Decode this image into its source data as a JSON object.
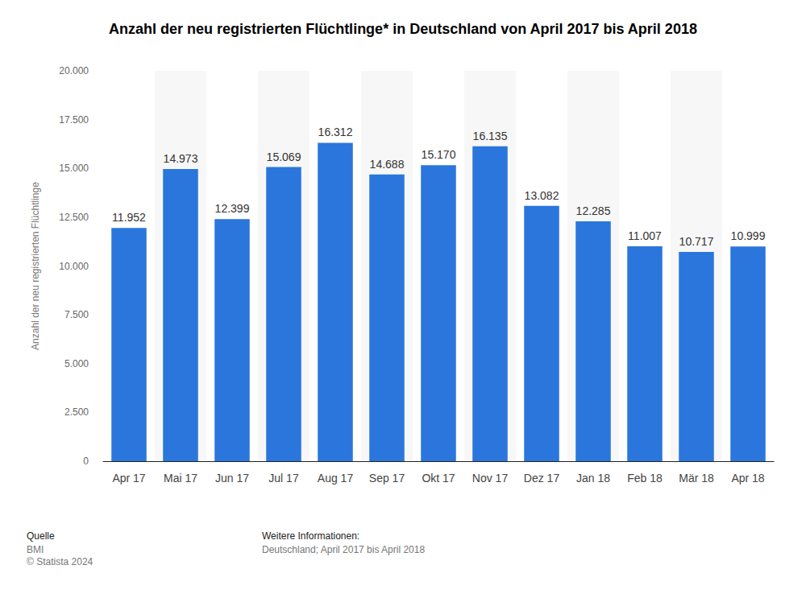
{
  "chart_data": {
    "type": "bar",
    "title": "Anzahl der neu registrierten Flüchtlinge* in Deutschland von April 2017 bis April 2018",
    "y_label": "Anzahl der neu registrierten Flüchtlinge",
    "categories": [
      "Apr 17",
      "Mai 17",
      "Jun 17",
      "Jul 17",
      "Aug 17",
      "Sep 17",
      "Okt 17",
      "Nov 17",
      "Dez 17",
      "Jan 18",
      "Feb 18",
      "Mär 18",
      "Apr 18"
    ],
    "values": [
      11952,
      14973,
      12399,
      15069,
      16312,
      14688,
      15170,
      16135,
      13082,
      12285,
      11007,
      10717,
      10999
    ],
    "value_labels": [
      "11.952",
      "14.973",
      "12.399",
      "15.069",
      "16.312",
      "14.688",
      "15.170",
      "16.135",
      "13.082",
      "12.285",
      "11.007",
      "10.717",
      "10.999"
    ],
    "color": "#2a76dd",
    "ylim": [
      0,
      20000
    ],
    "yticks": [
      0,
      {
        "value": 2500,
        "label": "2.500"
      },
      {
        "value": 5000,
        "label": "5.000"
      },
      {
        "value": 7500,
        "label": "7.500"
      },
      {
        "value": 10000,
        "label": "10.000"
      },
      {
        "value": 12500,
        "label": "12.500"
      },
      {
        "value": 15000,
        "label": "15.000"
      },
      {
        "value": 17500,
        "label": "17.500"
      },
      {
        "value": 20000,
        "label": "20.000"
      }
    ],
    "grid": true,
    "data_labels": true,
    "annotations": [
      "Quelle",
      "BMI",
      "© Statista 2024",
      "Weitere Informationen:",
      "Deutschland; April 2017 bis April 2018"
    ]
  }
}
